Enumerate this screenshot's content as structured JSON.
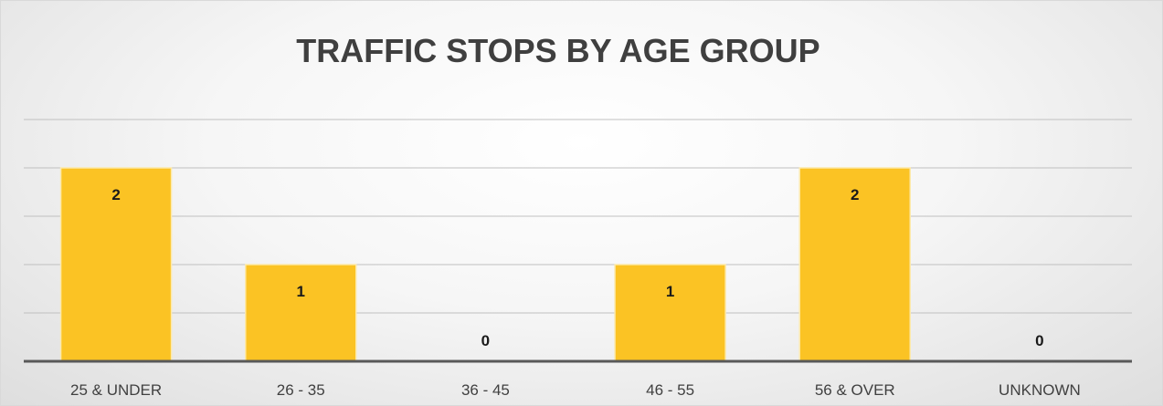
{
  "chart_data": {
    "type": "bar",
    "title": "TRAFFIC STOPS BY AGE GROUP",
    "xlabel": "",
    "ylabel": "",
    "categories": [
      "25 & UNDER",
      "26 - 35",
      "36 - 45",
      "46 - 55",
      "56 & OVER",
      "UNKNOWN"
    ],
    "values": [
      2,
      1,
      0,
      1,
      2,
      0
    ],
    "ylim": [
      0,
      4
    ],
    "y_tick_step": 0.5,
    "grid": true,
    "legend": "none",
    "data_labels": true,
    "colors": {
      "bar": "#fbc324",
      "bar_edge": "#fde9a8",
      "grid": "#c0c0c0",
      "axis": "#595959",
      "title": "#3f3f3f"
    }
  }
}
